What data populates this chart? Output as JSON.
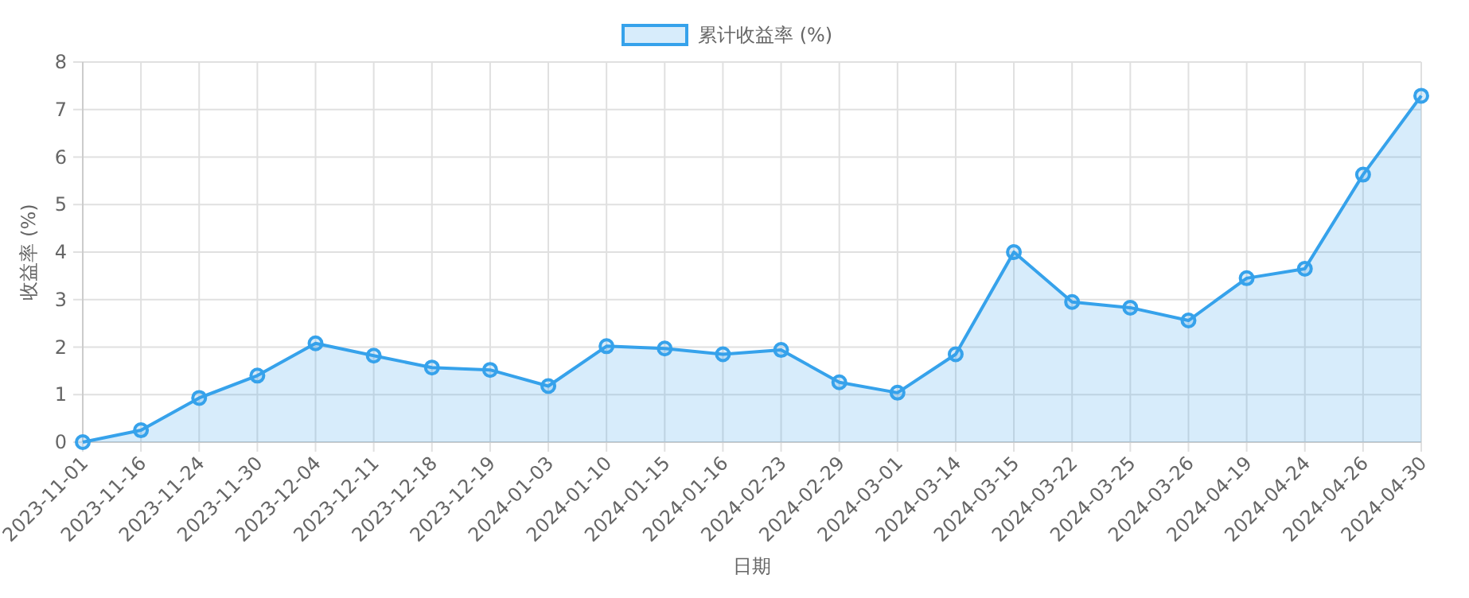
{
  "chart_data": {
    "type": "area",
    "xlabel": "日期",
    "ylabel": "收益率 (%)",
    "categories": [
      "2023-11-01",
      "2023-11-16",
      "2023-11-24",
      "2023-11-30",
      "2023-12-04",
      "2023-12-11",
      "2023-12-18",
      "2023-12-19",
      "2024-01-03",
      "2024-01-10",
      "2024-01-15",
      "2024-01-16",
      "2024-02-23",
      "2024-02-29",
      "2024-03-01",
      "2024-03-14",
      "2024-03-15",
      "2024-03-22",
      "2024-03-25",
      "2024-03-26",
      "2024-04-19",
      "2024-04-24",
      "2024-04-26",
      "2024-04-30"
    ],
    "series": [
      {
        "name": "累计收益率 (%)",
        "color": "#36a2eb",
        "values": [
          0,
          0.25,
          0.93,
          1.4,
          2.08,
          1.82,
          1.57,
          1.52,
          1.18,
          2.02,
          1.97,
          1.85,
          1.94,
          1.26,
          1.04,
          1.85,
          4.0,
          2.95,
          2.83,
          2.56,
          3.45,
          3.65,
          5.63,
          7.29
        ]
      }
    ],
    "ylim": [
      0,
      8
    ],
    "yticks": [
      0,
      1,
      2,
      3,
      4,
      5,
      6,
      7,
      8
    ],
    "grid": true,
    "legend": "top",
    "marker": "circle",
    "line_style": "solid"
  }
}
